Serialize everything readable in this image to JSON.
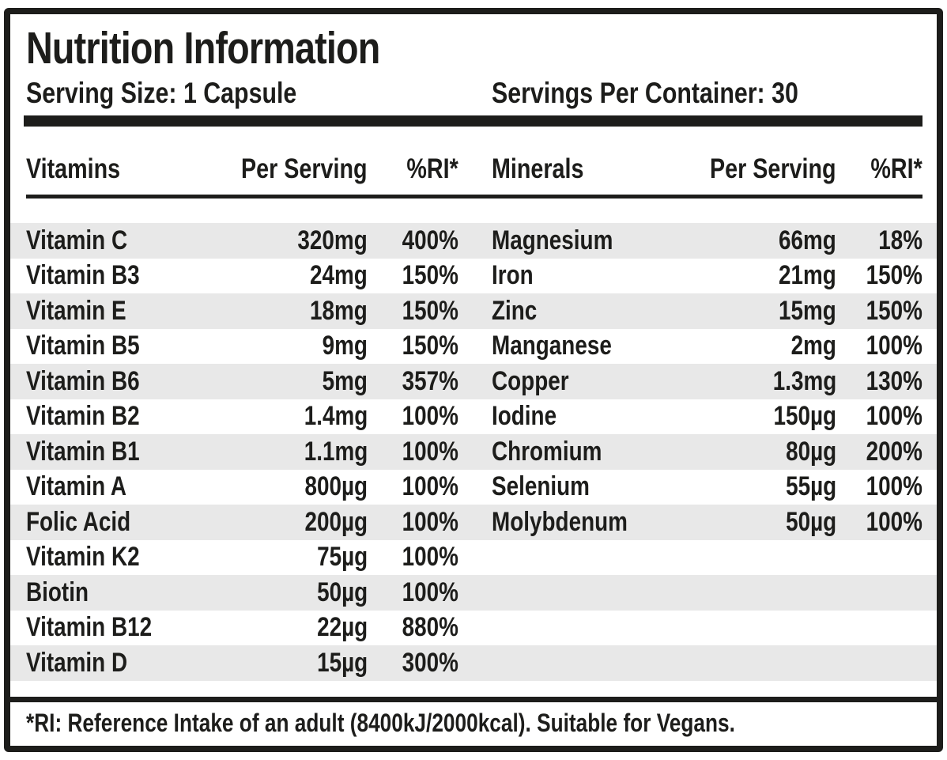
{
  "label": {
    "title": "Nutrition Information",
    "serving_size": "Serving Size: 1 Capsule",
    "servings_per_container": "Servings Per Container: 30",
    "footnote": "*RI: Reference Intake of an adult (8400kJ/2000kcal). Suitable for Vegans."
  },
  "headers": {
    "vitamins": "Vitamins",
    "vitamins_per_serving": "Per Serving",
    "vitamins_ri": "%RI*",
    "minerals": "Minerals",
    "minerals_per_serving": "Per Serving",
    "minerals_ri": "%RI*"
  },
  "rows": [
    {
      "vn": "Vitamin C",
      "va": "320mg",
      "vr": "400%",
      "mn": "Magnesium",
      "ma": "66mg",
      "mr": "18%"
    },
    {
      "vn": "Vitamin B3",
      "va": "24mg",
      "vr": "150%",
      "mn": "Iron",
      "ma": "21mg",
      "mr": "150%"
    },
    {
      "vn": "Vitamin E",
      "va": "18mg",
      "vr": "150%",
      "mn": "Zinc",
      "ma": "15mg",
      "mr": "150%"
    },
    {
      "vn": "Vitamin B5",
      "va": "9mg",
      "vr": "150%",
      "mn": "Manganese",
      "ma": "2mg",
      "mr": "100%"
    },
    {
      "vn": "Vitamin B6",
      "va": "5mg",
      "vr": "357%",
      "mn": "Copper",
      "ma": "1.3mg",
      "mr": "130%"
    },
    {
      "vn": "Vitamin B2",
      "va": "1.4mg",
      "vr": "100%",
      "mn": "Iodine",
      "ma": "150µg",
      "mr": "100%"
    },
    {
      "vn": "Vitamin B1",
      "va": "1.1mg",
      "vr": "100%",
      "mn": "Chromium",
      "ma": "80µg",
      "mr": "200%"
    },
    {
      "vn": "Vitamin A",
      "va": "800µg",
      "vr": "100%",
      "mn": "Selenium",
      "ma": "55µg",
      "mr": "100%"
    },
    {
      "vn": "Folic Acid",
      "va": "200µg",
      "vr": "100%",
      "mn": "Molybdenum",
      "ma": "50µg",
      "mr": "100%"
    },
    {
      "vn": "Vitamin K2",
      "va": "75µg",
      "vr": "100%",
      "mn": "",
      "ma": "",
      "mr": ""
    },
    {
      "vn": "Biotin",
      "va": "50µg",
      "vr": "100%",
      "mn": "",
      "ma": "",
      "mr": ""
    },
    {
      "vn": "Vitamin B12",
      "va": "22µg",
      "vr": "880%",
      "mn": "",
      "ma": "",
      "mr": ""
    },
    {
      "vn": "Vitamin D",
      "va": "15µg",
      "vr": "300%",
      "mn": "",
      "ma": "",
      "mr": ""
    }
  ],
  "colors": {
    "ink": "#1d1d1b",
    "stripe": "#e8e8e8",
    "background": "#ffffff"
  }
}
